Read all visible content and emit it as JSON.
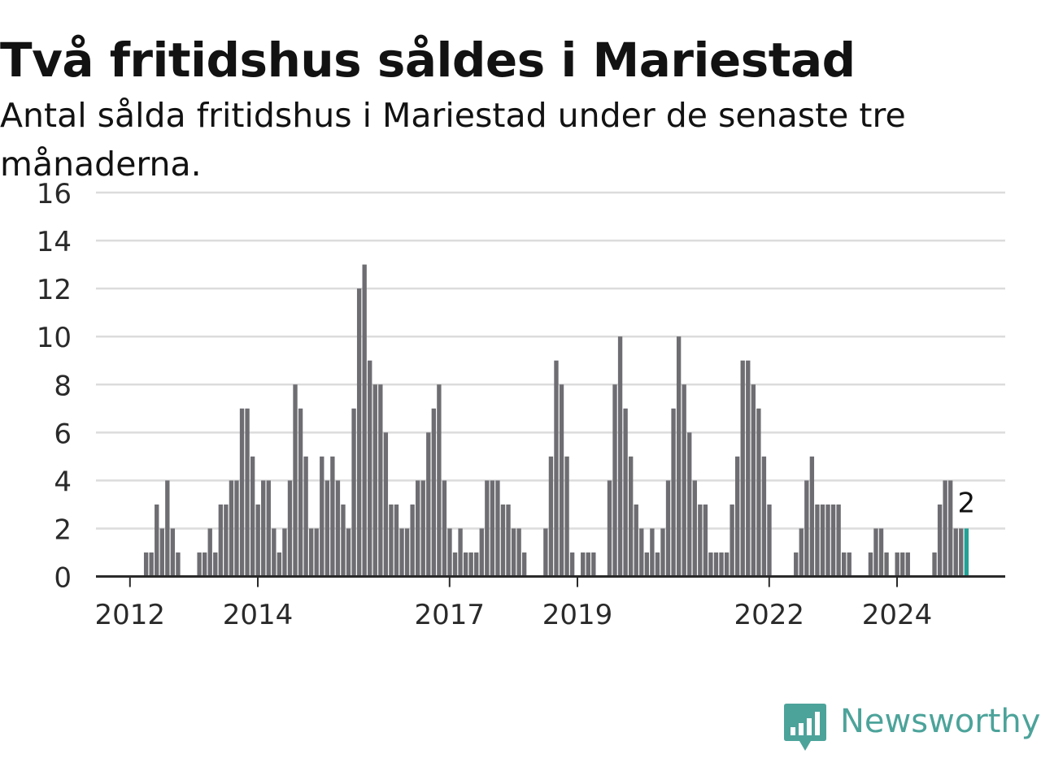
{
  "chart_data": {
    "type": "bar",
    "title": "Två fritidshus såldes i Mariestad",
    "subtitle": "Antal sålda fritidshus i Mariestad under de senaste tre månaderna.",
    "xlabel": "",
    "ylabel": "",
    "ylim": [
      0,
      16
    ],
    "yticks": [
      0,
      2,
      4,
      6,
      8,
      10,
      12,
      14,
      16
    ],
    "xticks": [
      "2012",
      "2014",
      "2017",
      "2019",
      "2022",
      "2024"
    ],
    "grid": true,
    "x_start": "2011-07",
    "x_unit": "month",
    "values": [
      0,
      0,
      0,
      0,
      0,
      0,
      0,
      0,
      0,
      1,
      1,
      3,
      2,
      4,
      2,
      1,
      0,
      0,
      0,
      1,
      1,
      2,
      1,
      3,
      3,
      4,
      4,
      7,
      7,
      5,
      3,
      4,
      4,
      2,
      1,
      2,
      4,
      8,
      7,
      5,
      2,
      2,
      5,
      4,
      5,
      4,
      3,
      2,
      7,
      12,
      13,
      9,
      8,
      8,
      6,
      3,
      3,
      2,
      2,
      3,
      4,
      4,
      6,
      7,
      8,
      4,
      2,
      1,
      2,
      1,
      1,
      1,
      2,
      4,
      4,
      4,
      3,
      3,
      2,
      2,
      1,
      0,
      0,
      0,
      2,
      5,
      9,
      8,
      5,
      1,
      0,
      1,
      1,
      1,
      0,
      0,
      4,
      8,
      10,
      7,
      5,
      3,
      2,
      1,
      2,
      1,
      2,
      4,
      7,
      10,
      8,
      6,
      4,
      3,
      3,
      1,
      1,
      1,
      1,
      3,
      5,
      9,
      9,
      8,
      7,
      5,
      3,
      0,
      0,
      0,
      0,
      1,
      2,
      4,
      5,
      3,
      3,
      3,
      3,
      3,
      1,
      1,
      0,
      0,
      0,
      1,
      2,
      2,
      1,
      0,
      1,
      1,
      1,
      0,
      0,
      0,
      0,
      1,
      3,
      4,
      4,
      2,
      2,
      2
    ],
    "highlight": {
      "label": "2",
      "value": 2,
      "color": "#23a195"
    },
    "bar_color": "#6d6d72",
    "grid_color": "#dcdcdc",
    "axis_color": "#2a2a2a"
  },
  "brand": {
    "name": "Newsworthy",
    "color": "#4ca39a"
  }
}
